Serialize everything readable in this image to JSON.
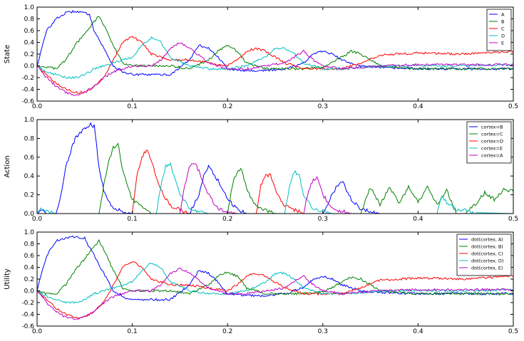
{
  "chart_data": [
    {
      "type": "line",
      "ylabel": "State",
      "xlim": [
        0,
        0.5
      ],
      "ylim": [
        -0.6,
        1.0
      ],
      "xticks": [
        "0.0",
        "0.1",
        "0.2",
        "0.3",
        "0.4",
        "0.5"
      ],
      "yticks": [
        "1.0",
        "0.8",
        "0.6",
        "0.4",
        "0.2",
        "0.0",
        "-0.2",
        "-0.4",
        "-0.6"
      ],
      "legend_position": "top-right",
      "series": [
        {
          "name": "A",
          "color": "#0000ff",
          "x": [
            0,
            0.01,
            0.02,
            0.03,
            0.04,
            0.05,
            0.055,
            0.06,
            0.07,
            0.08,
            0.09,
            0.1,
            0.12,
            0.14,
            0.16,
            0.17,
            0.18,
            0.19,
            0.2,
            0.22,
            0.24,
            0.26,
            0.28,
            0.29,
            0.3,
            0.31,
            0.32,
            0.34,
            0.36,
            0.4,
            0.45,
            0.5
          ],
          "y": [
            0,
            0.6,
            0.8,
            0.9,
            0.93,
            0.9,
            0.88,
            0.6,
            0.3,
            0.0,
            -0.1,
            -0.15,
            -0.15,
            -0.15,
            0.1,
            0.35,
            0.3,
            0.15,
            -0.05,
            -0.08,
            -0.08,
            -0.05,
            0.05,
            0.2,
            0.25,
            0.2,
            0.1,
            0.0,
            -0.03,
            -0.05,
            -0.05,
            -0.05
          ]
        },
        {
          "name": "B",
          "color": "#008000",
          "x": [
            0,
            0.01,
            0.02,
            0.03,
            0.04,
            0.05,
            0.06,
            0.065,
            0.07,
            0.08,
            0.09,
            0.1,
            0.12,
            0.14,
            0.16,
            0.18,
            0.19,
            0.2,
            0.21,
            0.22,
            0.24,
            0.26,
            0.28,
            0.3,
            0.32,
            0.33,
            0.34,
            0.36,
            0.4,
            0.45,
            0.5
          ],
          "y": [
            0,
            -0.02,
            -0.05,
            0.1,
            0.35,
            0.55,
            0.75,
            0.85,
            0.7,
            0.35,
            0.05,
            0.0,
            0.0,
            0.0,
            -0.05,
            0.1,
            0.25,
            0.35,
            0.25,
            0.05,
            -0.05,
            -0.05,
            -0.05,
            -0.02,
            0.15,
            0.25,
            0.2,
            0.0,
            -0.05,
            -0.05,
            -0.05
          ]
        },
        {
          "name": "C",
          "color": "#ff0000",
          "x": [
            0,
            0.01,
            0.02,
            0.03,
            0.04,
            0.05,
            0.06,
            0.07,
            0.08,
            0.09,
            0.1,
            0.11,
            0.12,
            0.14,
            0.16,
            0.18,
            0.2,
            0.21,
            0.22,
            0.23,
            0.24,
            0.26,
            0.28,
            0.3,
            0.32,
            0.34,
            0.36,
            0.4,
            0.45,
            0.5
          ],
          "y": [
            0,
            -0.15,
            -0.3,
            -0.4,
            -0.45,
            -0.45,
            -0.35,
            -0.2,
            0.1,
            0.4,
            0.5,
            0.4,
            0.2,
            0.1,
            0.1,
            0.05,
            0.0,
            0.1,
            0.25,
            0.3,
            0.25,
            0.05,
            -0.05,
            -0.05,
            -0.05,
            0.05,
            0.18,
            0.22,
            0.2,
            0.25
          ]
        },
        {
          "name": "D",
          "color": "#00bfbf",
          "x": [
            0,
            0.01,
            0.02,
            0.03,
            0.04,
            0.05,
            0.06,
            0.08,
            0.1,
            0.11,
            0.12,
            0.13,
            0.14,
            0.16,
            0.18,
            0.2,
            0.22,
            0.24,
            0.25,
            0.26,
            0.27,
            0.28,
            0.3,
            0.32,
            0.36,
            0.4,
            0.45,
            0.5
          ],
          "y": [
            0,
            -0.1,
            -0.15,
            -0.2,
            -0.2,
            -0.15,
            -0.05,
            0.05,
            0.15,
            0.35,
            0.48,
            0.4,
            0.15,
            0.0,
            -0.05,
            -0.05,
            0.0,
            0.15,
            0.3,
            0.3,
            0.2,
            0.05,
            -0.05,
            -0.05,
            0.0,
            0.0,
            0.0,
            0.02
          ]
        },
        {
          "name": "E",
          "color": "#bf00bf",
          "x": [
            0,
            0.01,
            0.02,
            0.03,
            0.04,
            0.05,
            0.06,
            0.07,
            0.08,
            0.1,
            0.12,
            0.13,
            0.14,
            0.15,
            0.16,
            0.18,
            0.2,
            0.22,
            0.24,
            0.26,
            0.27,
            0.28,
            0.29,
            0.3,
            0.32,
            0.36,
            0.4,
            0.45,
            0.5
          ],
          "y": [
            0,
            -0.2,
            -0.35,
            -0.45,
            -0.5,
            -0.45,
            -0.35,
            -0.2,
            -0.1,
            0.0,
            0.0,
            0.1,
            0.3,
            0.4,
            0.3,
            0.05,
            -0.05,
            -0.05,
            0.0,
            0.05,
            0.15,
            0.25,
            0.1,
            0.0,
            -0.05,
            0.0,
            0.02,
            0.02,
            0.02
          ]
        }
      ]
    },
    {
      "type": "line",
      "ylabel": "Action",
      "xlim": [
        0,
        0.5
      ],
      "ylim": [
        0,
        1.0
      ],
      "xticks": [
        "0.0",
        "0.1",
        "0.2",
        "0.3",
        "0.4",
        "0.5"
      ],
      "yticks": [
        "1.0",
        "0.8",
        "0.6",
        "0.4",
        "0.2",
        "0.0"
      ],
      "legend_position": "top-right",
      "series": [
        {
          "name": "cortex=B",
          "color": "#0000ff",
          "x": [
            0,
            0.005,
            0.01,
            0.02,
            0.025,
            0.03,
            0.04,
            0.05,
            0.055,
            0.06,
            0.065,
            0.07,
            0.08,
            0.1,
            0.16,
            0.17,
            0.175,
            0.18,
            0.19,
            0.2,
            0.21,
            0.22,
            0.3,
            0.31,
            0.315,
            0.32,
            0.33,
            0.34,
            0.36,
            0.5
          ],
          "y": [
            0,
            0.05,
            0,
            0,
            0.2,
            0.5,
            0.8,
            0.9,
            0.95,
            0.93,
            0.5,
            0.25,
            0.05,
            0,
            0,
            0.2,
            0.4,
            0.5,
            0.35,
            0.15,
            0.05,
            0,
            0,
            0.2,
            0.3,
            0.35,
            0.15,
            0.05,
            0,
            0
          ]
        },
        {
          "name": "cortex=C",
          "color": "#008000",
          "x": [
            0,
            0.065,
            0.07,
            0.075,
            0.08,
            0.085,
            0.09,
            0.1,
            0.12,
            0.2,
            0.205,
            0.21,
            0.215,
            0.22,
            0.23,
            0.25,
            0.34,
            0.345,
            0.35,
            0.36,
            0.37,
            0.38,
            0.39,
            0.4,
            0.41,
            0.42,
            0.43,
            0.44,
            0.45,
            0.46,
            0.47,
            0.48,
            0.49,
            0.5
          ],
          "y": [
            0,
            0,
            0.3,
            0.55,
            0.7,
            0.75,
            0.45,
            0.15,
            0,
            0,
            0.3,
            0.45,
            0.48,
            0.25,
            0.08,
            0,
            0,
            0.15,
            0.28,
            0.1,
            0.28,
            0.12,
            0.28,
            0.12,
            0.28,
            0.1,
            0.25,
            0,
            0,
            0.1,
            0.22,
            0.15,
            0.25,
            0.25
          ]
        },
        {
          "name": "cortex=D",
          "color": "#ff0000",
          "x": [
            0,
            0.1,
            0.105,
            0.11,
            0.115,
            0.12,
            0.13,
            0.14,
            0.16,
            0.23,
            0.235,
            0.24,
            0.245,
            0.25,
            0.26,
            0.28,
            0.5
          ],
          "y": [
            0,
            0,
            0.4,
            0.6,
            0.68,
            0.55,
            0.25,
            0.08,
            0,
            0,
            0.3,
            0.4,
            0.42,
            0.25,
            0.08,
            0,
            0
          ]
        },
        {
          "name": "cortex=E",
          "color": "#00bfbf",
          "x": [
            0,
            0.003,
            0.008,
            0.012,
            0.02,
            0.125,
            0.13,
            0.135,
            0.14,
            0.145,
            0.15,
            0.16,
            0.18,
            0.26,
            0.265,
            0.27,
            0.275,
            0.28,
            0.29,
            0.31,
            0.42,
            0.425,
            0.43,
            0.44,
            0.46,
            0.5
          ],
          "y": [
            0,
            0.05,
            0.04,
            0.02,
            0,
            0,
            0.3,
            0.5,
            0.52,
            0.35,
            0.2,
            0.05,
            0,
            0,
            0.3,
            0.45,
            0.4,
            0.2,
            0.05,
            0,
            0,
            0.2,
            0.12,
            0.05,
            0.01,
            0
          ]
        },
        {
          "name": "cortex=A",
          "color": "#bf00bf",
          "x": [
            0,
            0.15,
            0.155,
            0.16,
            0.165,
            0.17,
            0.18,
            0.19,
            0.21,
            0.28,
            0.285,
            0.29,
            0.295,
            0.3,
            0.31,
            0.33,
            0.5
          ],
          "y": [
            0,
            0,
            0.3,
            0.5,
            0.55,
            0.45,
            0.2,
            0.05,
            0,
            0,
            0.25,
            0.35,
            0.38,
            0.2,
            0.05,
            0,
            0
          ]
        }
      ]
    },
    {
      "type": "line",
      "ylabel": "Utility",
      "xlim": [
        0,
        0.5
      ],
      "ylim": [
        -0.6,
        1.0
      ],
      "xticks": [
        "0.0",
        "0.1",
        "0.2",
        "0.3",
        "0.4",
        "0.5"
      ],
      "yticks": [
        "1.0",
        "0.8",
        "0.6",
        "0.4",
        "0.2",
        "0.0",
        "-0.2",
        "-0.4",
        "-0.6"
      ],
      "legend_position": "top-right",
      "series": [
        {
          "name": "dot(cortex, A)",
          "color": "#0000ff",
          "x": [
            0,
            0.01,
            0.02,
            0.03,
            0.04,
            0.05,
            0.05,
            0.06,
            0.07,
            0.08,
            0.09,
            0.1,
            0.12,
            0.14,
            0.16,
            0.17,
            0.18,
            0.19,
            0.2,
            0.22,
            0.24,
            0.26,
            0.28,
            0.29,
            0.3,
            0.31,
            0.32,
            0.34,
            0.36,
            0.4,
            0.45,
            0.5
          ],
          "y": [
            0,
            0.6,
            0.85,
            0.9,
            0.92,
            0.9,
            0.88,
            0.6,
            0.3,
            0.0,
            -0.1,
            -0.15,
            -0.15,
            -0.15,
            0.1,
            0.35,
            0.3,
            0.15,
            -0.05,
            -0.08,
            -0.08,
            -0.05,
            0.05,
            0.2,
            0.25,
            0.2,
            0.1,
            0.0,
            -0.03,
            -0.05,
            -0.05,
            -0.05
          ]
        },
        {
          "name": "dot(cortex, B)",
          "color": "#008000",
          "x": [
            0,
            0.01,
            0.02,
            0.03,
            0.04,
            0.05,
            0.06,
            0.065,
            0.07,
            0.08,
            0.09,
            0.1,
            0.12,
            0.14,
            0.16,
            0.18,
            0.19,
            0.2,
            0.21,
            0.22,
            0.24,
            0.26,
            0.28,
            0.3,
            0.32,
            0.33,
            0.34,
            0.36,
            0.4,
            0.45,
            0.5
          ],
          "y": [
            0,
            -0.05,
            -0.05,
            0.1,
            0.35,
            0.55,
            0.75,
            0.85,
            0.7,
            0.35,
            0.05,
            0.0,
            0.0,
            0.0,
            -0.05,
            0.1,
            0.25,
            0.32,
            0.25,
            0.05,
            -0.05,
            -0.05,
            -0.05,
            -0.02,
            0.15,
            0.23,
            0.2,
            0.0,
            -0.05,
            -0.05,
            -0.05
          ]
        },
        {
          "name": "dot(cortex, C)",
          "color": "#ff0000",
          "x": [
            0,
            0.01,
            0.02,
            0.03,
            0.04,
            0.05,
            0.06,
            0.07,
            0.08,
            0.09,
            0.1,
            0.11,
            0.12,
            0.14,
            0.16,
            0.18,
            0.2,
            0.21,
            0.22,
            0.23,
            0.24,
            0.26,
            0.28,
            0.3,
            0.32,
            0.34,
            0.36,
            0.4,
            0.45,
            0.5
          ],
          "y": [
            0,
            -0.15,
            -0.3,
            -0.4,
            -0.45,
            -0.45,
            -0.35,
            -0.2,
            0.1,
            0.4,
            0.5,
            0.4,
            0.2,
            0.1,
            0.1,
            0.05,
            0.0,
            0.1,
            0.25,
            0.3,
            0.25,
            0.05,
            -0.05,
            -0.05,
            -0.05,
            0.05,
            0.18,
            0.22,
            0.2,
            0.25
          ]
        },
        {
          "name": "dot(cortex, D)",
          "color": "#00bfbf",
          "x": [
            0,
            0.01,
            0.02,
            0.03,
            0.04,
            0.05,
            0.06,
            0.08,
            0.1,
            0.11,
            0.12,
            0.13,
            0.14,
            0.16,
            0.18,
            0.2,
            0.22,
            0.24,
            0.25,
            0.26,
            0.27,
            0.28,
            0.3,
            0.32,
            0.36,
            0.4,
            0.45,
            0.5
          ],
          "y": [
            0,
            -0.1,
            -0.15,
            -0.2,
            -0.2,
            -0.15,
            -0.05,
            0.05,
            0.15,
            0.35,
            0.48,
            0.4,
            0.15,
            0.0,
            -0.05,
            -0.05,
            0.0,
            0.15,
            0.3,
            0.3,
            0.2,
            0.05,
            -0.05,
            -0.05,
            0.0,
            0.0,
            0.0,
            0.02
          ]
        },
        {
          "name": "dot(cortex, E)",
          "color": "#bf00bf",
          "x": [
            0,
            0.01,
            0.02,
            0.03,
            0.04,
            0.05,
            0.06,
            0.07,
            0.08,
            0.1,
            0.12,
            0.13,
            0.14,
            0.15,
            0.16,
            0.18,
            0.2,
            0.22,
            0.24,
            0.26,
            0.27,
            0.28,
            0.29,
            0.3,
            0.32,
            0.36,
            0.4,
            0.45,
            0.5
          ],
          "y": [
            0,
            -0.2,
            -0.35,
            -0.45,
            -0.48,
            -0.45,
            -0.35,
            -0.2,
            -0.1,
            0.0,
            0.0,
            0.1,
            0.3,
            0.38,
            0.3,
            0.05,
            -0.05,
            -0.05,
            0.0,
            0.05,
            0.15,
            0.25,
            0.1,
            0.0,
            -0.05,
            0.0,
            0.02,
            0.02,
            0.02
          ]
        }
      ]
    }
  ]
}
